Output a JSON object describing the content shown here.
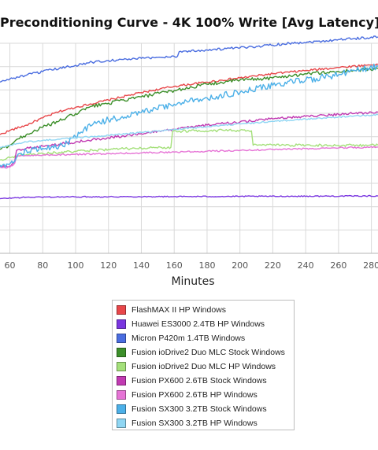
{
  "chart_data": {
    "type": "line",
    "title": "Preconditioning Curve - 4K 100% Write [Avg Latency]",
    "xlabel": "Minutes",
    "ylabel": "",
    "xlim": [
      54,
      284
    ],
    "xticks": [
      60,
      80,
      100,
      120,
      140,
      160,
      180,
      200,
      220,
      240,
      260,
      280
    ],
    "ylim": [
      0,
      100
    ],
    "grid": true,
    "legend": "bottom",
    "series": [
      {
        "name": "FlashMAX II HP Windows",
        "color": "#e8474a",
        "x": [
          54,
          60,
          70,
          80,
          90,
          100,
          120,
          140,
          160,
          180,
          200,
          220,
          240,
          260,
          284
        ],
        "y": [
          56.5,
          58.5,
          61,
          64.5,
          67.5,
          69.5,
          73,
          76.5,
          79.5,
          81.5,
          83.5,
          85.5,
          87,
          88.5,
          90
        ]
      },
      {
        "name": "Huawei ES3000 2.4TB HP Windows",
        "color": "#7a36e0",
        "x": [
          54,
          70,
          100,
          150,
          200,
          284
        ],
        "y": [
          26,
          26.7,
          26.9,
          27,
          27.1,
          27.3
        ]
      },
      {
        "name": "Micron P420m 1.4TB Windows",
        "color": "#4a6de0",
        "x": [
          54,
          60,
          70,
          80,
          90,
          100,
          110,
          120,
          140,
          150,
          162,
          163,
          180,
          200,
          210,
          230,
          250,
          260,
          270,
          284
        ],
        "y": [
          81.5,
          83,
          84.8,
          86.5,
          88,
          89.5,
          91,
          91.8,
          92.8,
          93.3,
          93.8,
          96,
          96.8,
          97.8,
          98.5,
          100,
          101,
          101.8,
          102.3,
          103
        ]
      },
      {
        "name": "Fusion ioDrive2 Duo MLC Stock Windows",
        "color": "#3c8f2a",
        "x": [
          54,
          60,
          65,
          70,
          80,
          90,
          100,
          110,
          120,
          140,
          160,
          180,
          200,
          220,
          240,
          260,
          284
        ],
        "y": [
          49.5,
          51.5,
          54.5,
          56.5,
          60,
          63,
          66.5,
          70,
          71.5,
          74.5,
          77.5,
          80.5,
          82.5,
          83.5,
          85.5,
          86.5,
          88
        ]
      },
      {
        "name": "Fusion ioDrive2 Duo MLC HP Windows",
        "color": "#a4e07a",
        "x": [
          54,
          60,
          65,
          70,
          80,
          90,
          100,
          120,
          140,
          158,
          159,
          170,
          190,
          207,
          208,
          220,
          240,
          260,
          284
        ],
        "y": [
          44.5,
          45.5,
          46.5,
          47,
          47.5,
          48,
          48.5,
          49.5,
          50,
          50.5,
          58,
          58.3,
          58.5,
          58.3,
          51.5,
          51.5,
          51.5,
          51.4,
          51.5
        ]
      },
      {
        "name": "Fusion PX600 2.6TB Stock Windows",
        "color": "#c13ab2",
        "x": [
          54,
          57,
          60,
          63,
          64,
          66,
          70,
          80,
          90,
          100,
          120,
          140,
          160,
          180,
          200,
          220,
          240,
          260,
          284
        ],
        "y": [
          41.5,
          41.3,
          41.5,
          44,
          49,
          49.5,
          50,
          51,
          52,
          53,
          55,
          57,
          59,
          61,
          62.5,
          64,
          65.2,
          66.2,
          67.2
        ]
      },
      {
        "name": "Fusion PX600 2.6TB HP Windows",
        "color": "#e674d6",
        "x": [
          54,
          57,
          60,
          63,
          64,
          66,
          70,
          80,
          100,
          120,
          140,
          160,
          180,
          200,
          220,
          240,
          260,
          284
        ],
        "y": [
          41,
          40.8,
          41,
          43,
          46,
          46.3,
          46.5,
          46.8,
          47.1,
          47.4,
          47.8,
          48.2,
          48.6,
          49,
          49.4,
          49.8,
          50.2,
          50.6
        ]
      },
      {
        "name": "Fusion SX300 3.2TB Stock Windows",
        "color": "#4cb0e8",
        "x": [
          54,
          58,
          62,
          64,
          66,
          70,
          80,
          90,
          95,
          100,
          110,
          120,
          140,
          160,
          180,
          200,
          220,
          240,
          260,
          270,
          284
        ],
        "y": [
          42,
          42.5,
          43,
          45.5,
          47.5,
          49,
          50,
          51,
          52.5,
          55.5,
          61,
          63.5,
          67,
          71,
          74,
          76.5,
          80,
          82.5,
          85,
          87,
          89
        ]
      },
      {
        "name": "Fusion SX300 3.2TB HP Windows",
        "color": "#8fd6f3",
        "x": [
          54,
          60,
          70,
          80,
          100,
          120,
          140,
          160,
          180,
          200,
          220,
          240,
          260,
          284
        ],
        "y": [
          50.5,
          51.5,
          53,
          53.8,
          55,
          56.2,
          57.5,
          59,
          60.3,
          61.6,
          62.8,
          63.9,
          64.9,
          66
        ]
      }
    ]
  }
}
